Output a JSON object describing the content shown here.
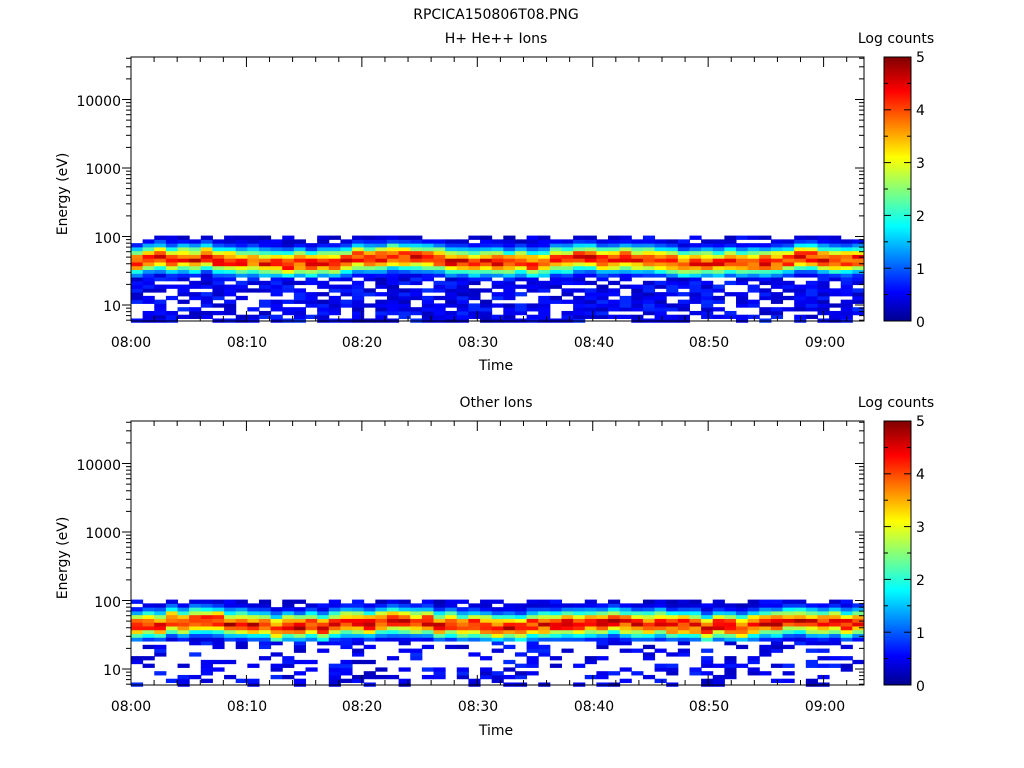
{
  "figure_title": "RPCICA150806T08.PNG",
  "chart_data": [
    {
      "type": "heatmap",
      "title": "H+ He++ Ions",
      "xlabel": "Time",
      "ylabel": "Energy (eV)",
      "x_ticks": [
        "08:00",
        "08:10",
        "08:20",
        "08:30",
        "08:40",
        "08:50",
        "09:00"
      ],
      "x_range_minutes": [
        0,
        63.5
      ],
      "y_scale": "log",
      "y_range": [
        5.5,
        45000
      ],
      "y_ticks": [
        "10",
        "100",
        "1000",
        "10000"
      ],
      "colorbar": {
        "label": "Log counts",
        "range": [
          0,
          5
        ],
        "ticks": [
          "0",
          "1",
          "2",
          "3",
          "4",
          "5"
        ]
      },
      "band": {
        "center_ev": 45,
        "peak_log_counts": 4.5,
        "noise_min_ev": 6
      }
    },
    {
      "type": "heatmap",
      "title": "Other Ions",
      "xlabel": "Time",
      "ylabel": "Energy (eV)",
      "x_ticks": [
        "08:00",
        "08:10",
        "08:20",
        "08:30",
        "08:40",
        "08:50",
        "09:00"
      ],
      "x_range_minutes": [
        0,
        63.5
      ],
      "y_scale": "log",
      "y_range": [
        5.5,
        45000
      ],
      "y_ticks": [
        "10",
        "100",
        "1000",
        "10000"
      ],
      "colorbar": {
        "label": "Log counts",
        "range": [
          0,
          5
        ],
        "ticks": [
          "0",
          "1",
          "2",
          "3",
          "4",
          "5"
        ]
      },
      "band": {
        "center_ev": 45,
        "peak_log_counts": 4.6,
        "noise_min_ev": 6
      }
    }
  ]
}
